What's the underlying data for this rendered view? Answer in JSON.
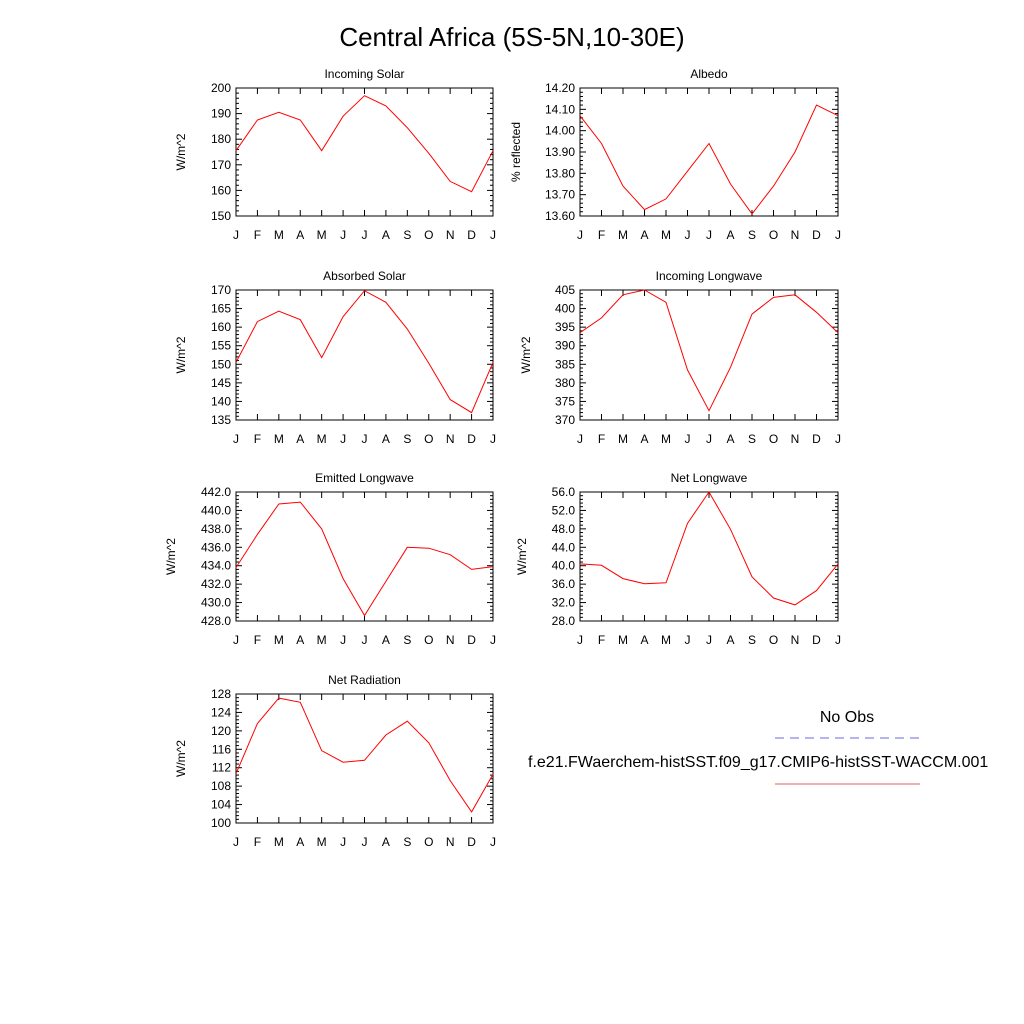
{
  "title": "Central Africa (5S-5N,10-30E)",
  "legend": {
    "entries": [
      {
        "label": "No Obs",
        "color": "#6a6ae0",
        "dash": true
      },
      {
        "label": "f.e21.FWaerchem-histSST.f09_g17.CMIP6-histSST-WACCM.001",
        "color": "#e06060",
        "dash": false
      }
    ]
  },
  "chart_data": [
    {
      "type": "line",
      "title": "Incoming Solar",
      "xlabel": "",
      "ylabel": "W/m^2",
      "categories": [
        "J",
        "F",
        "M",
        "A",
        "M",
        "J",
        "J",
        "A",
        "S",
        "O",
        "N",
        "D",
        "J"
      ],
      "ylim": [
        150,
        200
      ],
      "yticks": [
        "150",
        "160",
        "170",
        "180",
        "190",
        "200"
      ],
      "series": [
        {
          "color": "#ff0000",
          "values": [
            175.5,
            187.5,
            190.5,
            187.5,
            175.5,
            189,
            197,
            193,
            184.5,
            174.5,
            163.5,
            159.5,
            175.5
          ]
        }
      ]
    },
    {
      "type": "line",
      "title": "Albedo",
      "xlabel": "",
      "ylabel": "% reflected",
      "categories": [
        "J",
        "F",
        "M",
        "A",
        "M",
        "J",
        "J",
        "A",
        "S",
        "O",
        "N",
        "D",
        "J"
      ],
      "ylim": [
        13.6,
        14.2
      ],
      "yticks": [
        "13.60",
        "13.70",
        "13.80",
        "13.90",
        "14.00",
        "14.10",
        "14.20"
      ],
      "series": [
        {
          "color": "#ff0000",
          "values": [
            14.07,
            13.94,
            13.74,
            13.63,
            13.68,
            13.81,
            13.94,
            13.75,
            13.61,
            13.74,
            13.9,
            14.12,
            14.07
          ]
        }
      ]
    },
    {
      "type": "line",
      "title": "Absorbed Solar",
      "xlabel": "",
      "ylabel": "W/m^2",
      "categories": [
        "J",
        "F",
        "M",
        "A",
        "M",
        "J",
        "J",
        "A",
        "S",
        "O",
        "N",
        "D",
        "J"
      ],
      "ylim": [
        135,
        170
      ],
      "yticks": [
        "135",
        "140",
        "145",
        "150",
        "155",
        "160",
        "165",
        "170"
      ],
      "series": [
        {
          "color": "#ff0000",
          "values": [
            150.5,
            161.5,
            164.3,
            162,
            151.8,
            162.8,
            169.8,
            166.7,
            159.5,
            150.3,
            140.5,
            137,
            150.5
          ]
        }
      ]
    },
    {
      "type": "line",
      "title": "Incoming Longwave",
      "xlabel": "",
      "ylabel": "W/m^2",
      "categories": [
        "J",
        "F",
        "M",
        "A",
        "M",
        "J",
        "J",
        "A",
        "S",
        "O",
        "N",
        "D",
        "J"
      ],
      "ylim": [
        370,
        405
      ],
      "yticks": [
        "370",
        "375",
        "380",
        "385",
        "390",
        "395",
        "400",
        "405"
      ],
      "series": [
        {
          "color": "#ff0000",
          "values": [
            393.5,
            397.5,
            403.7,
            405,
            401.7,
            383.5,
            372.5,
            384.2,
            398.5,
            403,
            403.7,
            399,
            393.5
          ]
        }
      ]
    },
    {
      "type": "line",
      "title": "Emitted Longwave",
      "xlabel": "",
      "ylabel": "W/m^2",
      "categories": [
        "J",
        "F",
        "M",
        "A",
        "M",
        "J",
        "J",
        "A",
        "S",
        "O",
        "N",
        "D",
        "J"
      ],
      "ylim": [
        428,
        442
      ],
      "yticks": [
        "428.0",
        "430.0",
        "432.0",
        "434.0",
        "436.0",
        "438.0",
        "440.0",
        "442.0"
      ],
      "series": [
        {
          "color": "#ff0000",
          "values": [
            433.8,
            437.4,
            440.7,
            440.9,
            438,
            432.6,
            428.6,
            432.3,
            436,
            435.9,
            435.2,
            433.6,
            433.9
          ]
        }
      ]
    },
    {
      "type": "line",
      "title": "Net Longwave",
      "xlabel": "",
      "ylabel": "W/m^2",
      "categories": [
        "J",
        "F",
        "M",
        "A",
        "M",
        "J",
        "J",
        "A",
        "S",
        "O",
        "N",
        "D",
        "J"
      ],
      "ylim": [
        28,
        56
      ],
      "yticks": [
        "28.0",
        "32.0",
        "36.0",
        "40.0",
        "44.0",
        "48.0",
        "52.0",
        "56.0"
      ],
      "series": [
        {
          "color": "#ff0000",
          "values": [
            40.4,
            40.1,
            37.2,
            36.1,
            36.3,
            49.2,
            56,
            47.9,
            37.6,
            33,
            31.5,
            34.6,
            40.4
          ]
        }
      ]
    },
    {
      "type": "line",
      "title": "Net Radiation",
      "xlabel": "",
      "ylabel": "W/m^2",
      "categories": [
        "J",
        "F",
        "M",
        "A",
        "M",
        "J",
        "J",
        "A",
        "S",
        "O",
        "N",
        "D",
        "J"
      ],
      "ylim": [
        100,
        128
      ],
      "yticks": [
        "100",
        "104",
        "108",
        "112",
        "116",
        "120",
        "124",
        "128"
      ],
      "series": [
        {
          "color": "#ff0000",
          "values": [
            110.7,
            121.6,
            127.1,
            126.2,
            115.7,
            113.2,
            113.6,
            119.1,
            122.1,
            117.4,
            109.2,
            102.4,
            110.6
          ]
        }
      ]
    }
  ]
}
